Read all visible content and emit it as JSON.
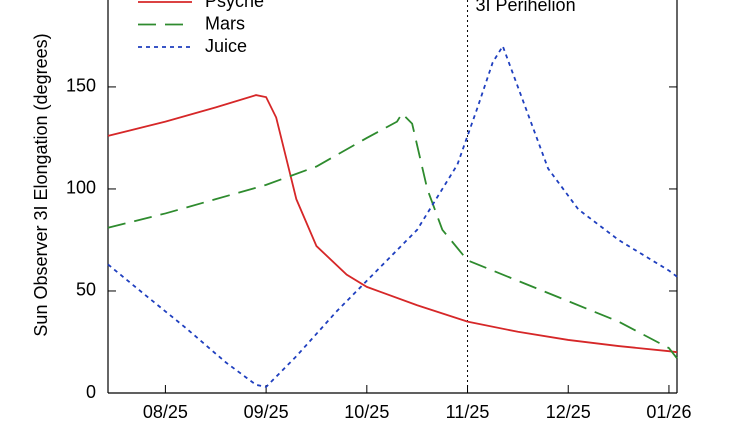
{
  "chart_data": {
    "type": "line",
    "y_label": "Sun Observer 3I Elongation (degrees)",
    "annotation": {
      "text": "3I Perihelion",
      "x": 11
    },
    "xlim": [
      7.43,
      13.08
    ],
    "ylim": [
      0,
      192.6
    ],
    "xticks": [
      {
        "value": 8,
        "label": "08/25"
      },
      {
        "value": 9,
        "label": "09/25"
      },
      {
        "value": 10,
        "label": "10/25"
      },
      {
        "value": 11,
        "label": "11/25"
      },
      {
        "value": 12,
        "label": "12/25"
      },
      {
        "value": 13,
        "label": "01/26"
      }
    ],
    "yticks": [
      0,
      50,
      100,
      150
    ],
    "legend": "top-left",
    "series": [
      {
        "name": "Psyche",
        "color": "#d62728",
        "dash": "solid",
        "x": [
          7.43,
          8,
          8.5,
          8.9,
          9.0,
          9.1,
          9.2,
          9.3,
          9.5,
          9.8,
          10,
          10.5,
          11,
          11.5,
          12,
          12.5,
          13,
          13.08
        ],
        "values": [
          126,
          133,
          140,
          146,
          145,
          135,
          115,
          95,
          72,
          58,
          52,
          43,
          35,
          30,
          26,
          23,
          20.5,
          20
        ]
      },
      {
        "name": "Mars",
        "color": "#2e8b2e",
        "dash": "dashed",
        "x": [
          7.43,
          8,
          8.5,
          9,
          9.5,
          10,
          10.3,
          10.35,
          10.45,
          10.6,
          10.75,
          11,
          11.5,
          12,
          12.5,
          13,
          13.08
        ],
        "values": [
          81,
          88,
          95,
          102,
          111,
          125,
          133,
          137,
          132,
          100,
          80,
          65,
          55,
          45,
          35,
          22,
          17
        ]
      },
      {
        "name": "Juice",
        "color": "#1f3fbf",
        "dash": "dotted",
        "x": [
          7.43,
          7.8,
          8.2,
          8.6,
          8.9,
          9.0,
          9.3,
          9.7,
          10,
          10.5,
          10.9,
          11.1,
          11.25,
          11.35,
          11.5,
          11.8,
          12.1,
          12.5,
          13,
          13.08
        ],
        "values": [
          63,
          48,
          32,
          15,
          4,
          3,
          18,
          40,
          55,
          80,
          112,
          140,
          162,
          170,
          150,
          110,
          90,
          75,
          60,
          57
        ]
      }
    ]
  }
}
